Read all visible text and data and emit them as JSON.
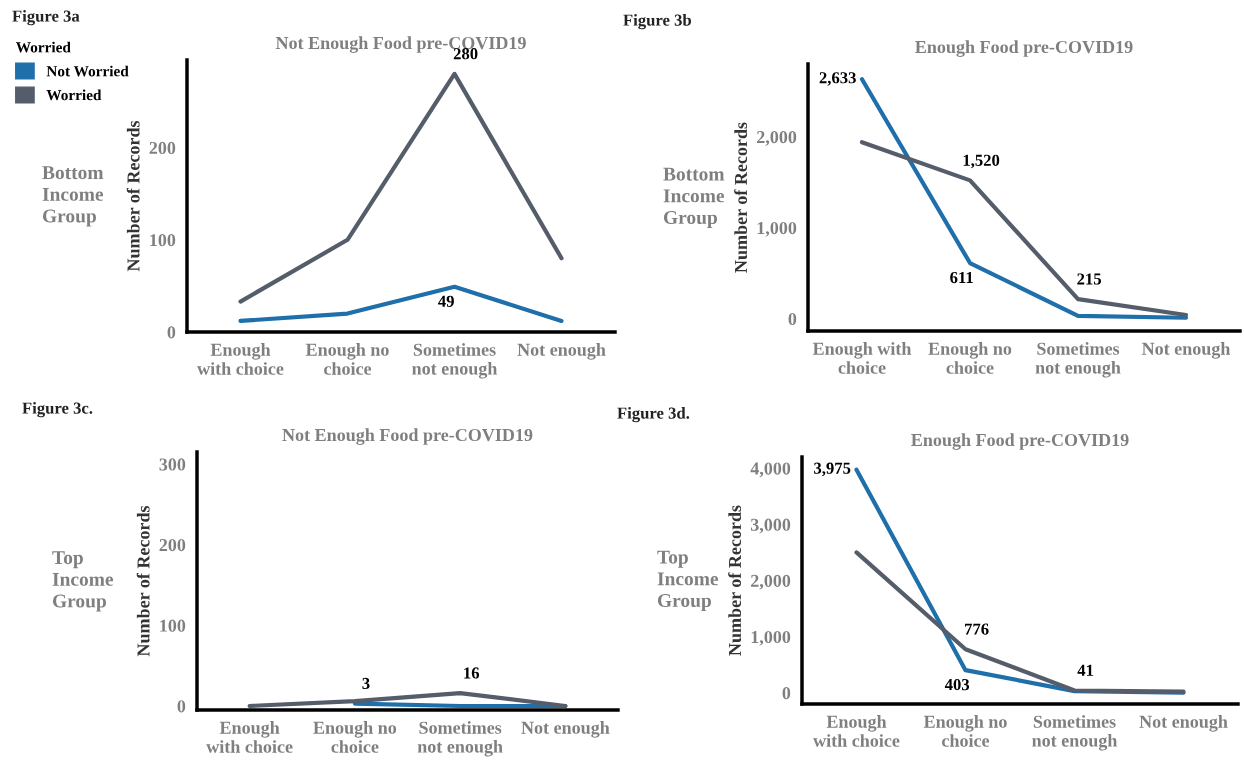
{
  "chart_data": [
    {
      "type": "line",
      "title": "Not Enough Food pre-COVID19",
      "ylabel": "Number of Records",
      "legend_title": "Worried",
      "legend": "top left",
      "categories": [
        "Enough\nwith choice",
        "Enough no\nchoice",
        "Sometimes\nnot enough",
        "Not enough"
      ],
      "ylim": [
        0,
        295
      ],
      "yticks": [
        0,
        100,
        200
      ],
      "grid": false,
      "marker": "none",
      "line_style": "solid",
      "annotations": [
        "Figure 3a",
        "Bottom\nIncome\nGroup"
      ],
      "series": [
        {
          "name": "Not Worried",
          "color": "#1f6fab",
          "values": [
            12,
            20,
            49,
            12
          ],
          "value_labels": [
            null,
            null,
            "49",
            null
          ]
        },
        {
          "name": "Worried",
          "color": "#555d6b",
          "values": [
            33,
            100,
            280,
            80
          ],
          "value_labels": [
            null,
            null,
            "280",
            null
          ]
        }
      ]
    },
    {
      "type": "line",
      "title": "Enough Food pre-COVID19",
      "ylabel": "Number of Records",
      "categories": [
        "Enough with\nchoice",
        "Enough no\nchoice",
        "Sometimes\nnot enough",
        "Not enough"
      ],
      "ylim": [
        -136,
        2800
      ],
      "yticks": [
        {
          "value": 0,
          "label": "0"
        },
        {
          "value": 1000,
          "label": "1,000"
        },
        {
          "value": 2000,
          "label": "2,000"
        }
      ],
      "grid": false,
      "marker": "none",
      "line_style": "solid",
      "annotations": [
        "Figure 3b",
        "Bottom\nIncome\nGroup"
      ],
      "series": [
        {
          "color": "#1f6fab",
          "values": [
            2633,
            611,
            30,
            10
          ],
          "value_labels": [
            "2,633",
            "611",
            null,
            null
          ]
        },
        {
          "color": "#555d6b",
          "values": [
            1940,
            1520,
            215,
            40
          ],
          "value_labels": [
            null,
            "1,520",
            "215",
            null
          ]
        }
      ]
    },
    {
      "type": "line",
      "title": "Not Enough Food pre-COVID19",
      "ylabel": "Number of Records",
      "categories": [
        "Enough\nwith choice",
        "Enough no\nchoice",
        "Sometimes\nnot enough",
        "Not enough"
      ],
      "ylim": [
        -5,
        315
      ],
      "yticks": [
        0,
        100,
        200,
        300
      ],
      "grid": false,
      "marker": "none",
      "line_style": "solid",
      "annotations": [
        "Figure 3c.",
        "Top\nIncome\nGroup"
      ],
      "series": [
        {
          "color": "#1f6fab",
          "values": [
            null,
            3,
            0,
            0
          ],
          "value_labels": [
            null,
            "3",
            null,
            null
          ]
        },
        {
          "color": "#555d6b",
          "values": [
            0,
            6,
            16,
            0
          ],
          "value_labels": [
            null,
            null,
            "16",
            null
          ]
        }
      ]
    },
    {
      "type": "line",
      "title": "Enough Food pre-COVID19",
      "ylabel": "Number of Records",
      "categories": [
        "Enough\nwith choice",
        "Enough no\nchoice",
        "Sometimes\nnot enough",
        "Not enough"
      ],
      "ylim": [
        -200,
        4200
      ],
      "yticks": [
        {
          "value": 0,
          "label": "0"
        },
        {
          "value": 1000,
          "label": "1,000"
        },
        {
          "value": 2000,
          "label": "2,000"
        },
        {
          "value": 3000,
          "label": "3,000"
        },
        {
          "value": 4000,
          "label": "4,000"
        }
      ],
      "grid": false,
      "marker": "none",
      "line_style": "solid",
      "annotations": [
        "Figure 3d.",
        "Top\nIncome\nGroup"
      ],
      "series": [
        {
          "color": "#1f6fab",
          "values": [
            3975,
            403,
            30,
            0
          ],
          "value_labels": [
            "3,975",
            "403",
            null,
            null
          ]
        },
        {
          "color": "#555d6b",
          "values": [
            2500,
            776,
            41,
            20
          ],
          "value_labels": [
            null,
            "776",
            "41",
            null
          ]
        }
      ]
    }
  ]
}
